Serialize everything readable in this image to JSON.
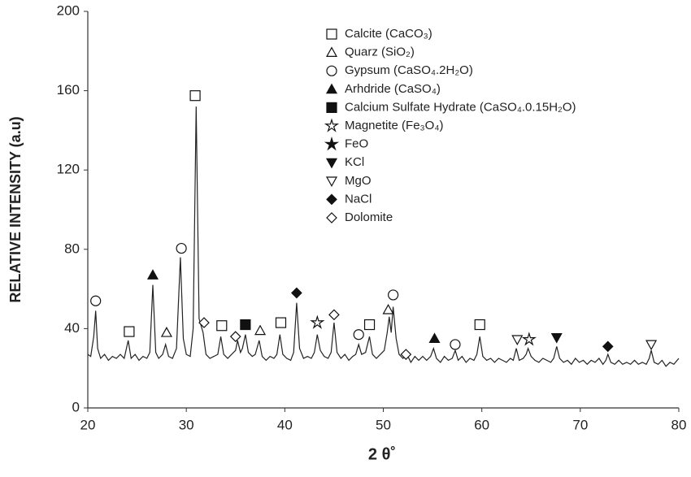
{
  "chart_data": {
    "type": "line",
    "xlabel": "2 θ˚",
    "ylabel": "RELATIVE INTENSITY (a.u)",
    "xlim": [
      20,
      80
    ],
    "xticks": [
      20,
      30,
      40,
      50,
      60,
      70,
      80
    ],
    "ylim": [
      0,
      200
    ],
    "yticks": [
      0,
      40,
      80,
      120,
      160,
      200
    ],
    "color": "#222222",
    "x": [
      20,
      20.3,
      20.6,
      20.8,
      21.0,
      21.3,
      21.7,
      22.1,
      22.5,
      22.9,
      23.3,
      23.7,
      24.1,
      24.4,
      24.8,
      25.2,
      25.6,
      26.0,
      26.3,
      26.6,
      26.9,
      27.2,
      27.6,
      27.9,
      28.2,
      28.6,
      29.0,
      29.4,
      29.7,
      30.0,
      30.4,
      30.7,
      31.0,
      31.3,
      31.7,
      32.0,
      32.4,
      32.8,
      33.2,
      33.5,
      33.8,
      34.2,
      34.6,
      35.0,
      35.2,
      35.5,
      35.7,
      36.0,
      36.3,
      36.7,
      37.0,
      37.4,
      37.7,
      38.1,
      38.5,
      38.9,
      39.2,
      39.5,
      39.8,
      40.2,
      40.6,
      40.9,
      41.2,
      41.5,
      41.9,
      42.3,
      42.7,
      43.0,
      43.3,
      43.6,
      44.0,
      44.4,
      44.7,
      45.0,
      45.3,
      45.7,
      46.1,
      46.5,
      46.9,
      47.2,
      47.5,
      47.8,
      48.2,
      48.6,
      48.9,
      49.3,
      49.7,
      50.1,
      50.4,
      50.6,
      50.8,
      51.0,
      51.3,
      51.6,
      52.0,
      52.4,
      52.8,
      53.2,
      53.6,
      54.0,
      54.4,
      54.8,
      55.1,
      55.4,
      55.8,
      56.2,
      56.6,
      57.0,
      57.3,
      57.6,
      58.0,
      58.4,
      58.8,
      59.2,
      59.5,
      59.8,
      60.1,
      60.5,
      60.9,
      61.3,
      61.7,
      62.1,
      62.5,
      62.9,
      63.2,
      63.5,
      63.8,
      64.2,
      64.5,
      64.7,
      65.0,
      65.4,
      65.8,
      66.2,
      66.6,
      67.0,
      67.3,
      67.6,
      67.9,
      68.3,
      68.7,
      69.1,
      69.5,
      69.9,
      70.3,
      70.7,
      71.1,
      71.5,
      71.9,
      72.3,
      72.6,
      72.8,
      73.1,
      73.5,
      73.9,
      74.3,
      74.7,
      75.1,
      75.5,
      75.9,
      76.3,
      76.7,
      77.0,
      77.2,
      77.5,
      77.9,
      78.3,
      78.7,
      79.1,
      79.5,
      80.0
    ],
    "values": [
      27,
      26,
      36,
      49,
      30,
      25,
      27,
      24,
      26,
      25,
      27,
      25,
      34,
      25,
      27,
      24,
      26,
      25,
      28,
      62,
      28,
      25,
      27,
      32,
      26,
      25,
      30,
      76,
      35,
      27,
      26,
      40,
      152,
      45,
      38,
      27,
      25,
      26,
      27,
      36,
      27,
      25,
      27,
      29,
      34,
      28,
      30,
      37,
      28,
      26,
      27,
      34,
      26,
      24,
      26,
      25,
      27,
      37,
      27,
      25,
      24,
      28,
      53,
      30,
      25,
      26,
      25,
      28,
      37,
      29,
      26,
      25,
      28,
      43,
      28,
      25,
      27,
      24,
      26,
      27,
      32,
      27,
      28,
      36,
      27,
      25,
      27,
      29,
      38,
      46,
      38,
      51,
      35,
      27,
      25,
      27,
      23,
      26,
      24,
      26,
      24,
      26,
      30,
      25,
      23,
      26,
      24,
      25,
      29,
      24,
      26,
      23,
      25,
      24,
      27,
      36,
      26,
      24,
      25,
      23,
      25,
      24,
      23,
      25,
      24,
      30,
      24,
      25,
      27,
      30,
      26,
      24,
      23,
      25,
      24,
      23,
      25,
      31,
      25,
      23,
      24,
      22,
      25,
      23,
      24,
      22,
      24,
      23,
      25,
      22,
      24,
      27,
      23,
      22,
      24,
      22,
      23,
      22,
      24,
      22,
      23,
      22,
      25,
      29,
      23,
      22,
      24,
      21,
      23,
      22,
      25
    ],
    "markers": [
      {
        "name": "Calcite (CaCO₃)",
        "symbol": "open-square",
        "x": [
          24.2,
          30.9,
          33.6,
          39.6,
          48.6,
          59.8
        ],
        "values": [
          38.5,
          157.5,
          41.5,
          43,
          42,
          42
        ]
      },
      {
        "name": "Quarz (SiO₂)",
        "symbol": "open-triangle",
        "x": [
          28,
          37.5,
          50.5
        ],
        "values": [
          38,
          39,
          49.5
        ]
      },
      {
        "name": "Gypsum (CaSO₄.2H₂O)",
        "symbol": "open-circle",
        "x": [
          20.8,
          29.5,
          47.5,
          51,
          57.3
        ],
        "values": [
          54,
          80.5,
          37,
          57,
          32
        ]
      },
      {
        "name": "Arhdride (CaSO₄)",
        "symbol": "filled-triangle",
        "x": [
          26.6,
          55.2
        ],
        "values": [
          67,
          35
        ]
      },
      {
        "name": "Calcium Sulfate Hydrate  (CaSO₄.0.15H₂O)",
        "symbol": "filled-square",
        "x": [
          36
        ],
        "values": [
          42
        ]
      },
      {
        "name": "Magnetite (Fe₃O₄)",
        "symbol": "open-star",
        "x": [
          43.3,
          64.8
        ],
        "values": [
          43,
          34.5
        ]
      },
      {
        "name": "FeO",
        "symbol": "filled-star",
        "x": [],
        "values": []
      },
      {
        "name": "KCl",
        "symbol": "filled-down-triangle",
        "x": [
          67.6
        ],
        "values": [
          35.5
        ]
      },
      {
        "name": "MgO",
        "symbol": "open-down-triangle",
        "x": [
          63.6,
          77.2
        ],
        "values": [
          34.5,
          32
        ]
      },
      {
        "name": "NaCl",
        "symbol": "filled-diamond",
        "x": [
          41.2,
          72.8
        ],
        "values": [
          58,
          31
        ]
      },
      {
        "name": "Dolomite",
        "symbol": "open-diamond",
        "x": [
          31.8,
          35,
          45,
          52.3
        ],
        "values": [
          43,
          36,
          47,
          27
        ]
      }
    ]
  }
}
